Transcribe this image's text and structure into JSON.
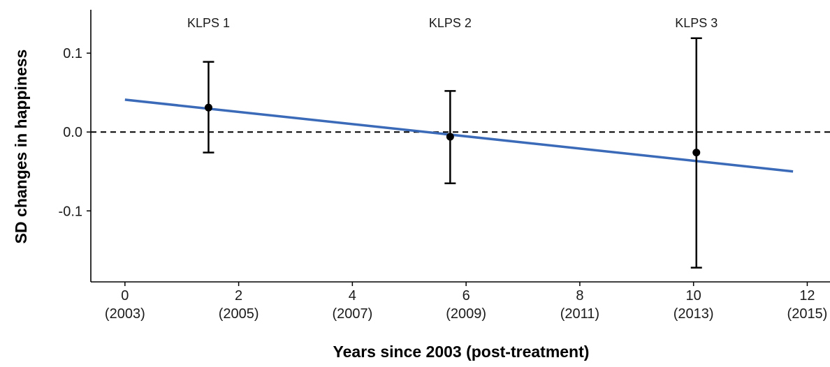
{
  "chart_data": {
    "type": "scatter",
    "xlabel": "Years since 2003 (post-treatment)",
    "ylabel": "SD changes in happiness",
    "xlim": [
      -0.6,
      12.4
    ],
    "ylim": [
      -0.19,
      0.155
    ],
    "x_ticks": [
      {
        "value": 0,
        "label": "0",
        "sublabel": "(2003)"
      },
      {
        "value": 2,
        "label": "2",
        "sublabel": "(2005)"
      },
      {
        "value": 4,
        "label": "4",
        "sublabel": "(2007)"
      },
      {
        "value": 6,
        "label": "6",
        "sublabel": "(2009)"
      },
      {
        "value": 8,
        "label": "8",
        "sublabel": "(2011)"
      },
      {
        "value": 10,
        "label": "10",
        "sublabel": "(2013)"
      },
      {
        "value": 12,
        "label": "12",
        "sublabel": "(2015)"
      }
    ],
    "y_ticks": [
      {
        "value": 0.1,
        "label": "0.1"
      },
      {
        "value": 0.0,
        "label": "0.0"
      },
      {
        "value": -0.1,
        "label": "-0.1"
      }
    ],
    "points": [
      {
        "label": "KLPS 1",
        "x": 1.47,
        "y": 0.031,
        "ci_low": -0.026,
        "ci_high": 0.089
      },
      {
        "label": "KLPS 2",
        "x": 5.72,
        "y": -0.006,
        "ci_low": -0.065,
        "ci_high": 0.052
      },
      {
        "label": "KLPS 3",
        "x": 10.05,
        "y": -0.026,
        "ci_low": -0.172,
        "ci_high": 0.119
      }
    ],
    "fit_line": {
      "x": [
        0,
        11.75
      ],
      "y": [
        0.041,
        -0.05
      ],
      "color": "#3a6ab8"
    },
    "reference_line": {
      "y": 0,
      "style": "dashed"
    },
    "point_color": "#000000",
    "grid": false,
    "legend": "none"
  }
}
